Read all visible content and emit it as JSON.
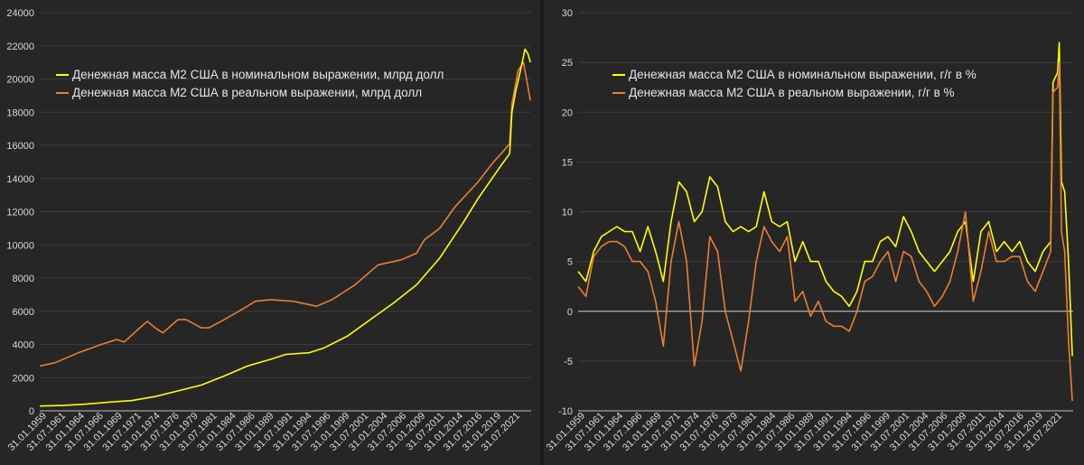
{
  "colors": {
    "background": "#262626",
    "grid": "#3c3c3c",
    "axis": "#bfbfbf",
    "nominal": "#ffff00",
    "real": "#ed7d31"
  },
  "chart_data": [
    {
      "type": "line",
      "grid": true,
      "legend_position": "top",
      "ylim": [
        0,
        24000
      ],
      "yticks": [
        0,
        2000,
        4000,
        6000,
        8000,
        10000,
        12000,
        14000,
        16000,
        18000,
        20000,
        22000,
        24000
      ],
      "xlim": [
        1959.0,
        2022.9
      ],
      "xtick_labels": [
        "31.01.1959",
        "31.07.1961",
        "31.01.1964",
        "31.07.1966",
        "31.01.1969",
        "31.07.1971",
        "31.01.1974",
        "31.07.1976",
        "31.01.1979",
        "31.07.1981",
        "31.01.1984",
        "31.07.1986",
        "31.01.1989",
        "31.07.1991",
        "31.01.1994",
        "31.07.1996",
        "31.01.1999",
        "31.07.2001",
        "31.01.2004",
        "31.07.2006",
        "31.01.2009",
        "31.07.2011",
        "31.01.2014",
        "31.07.2016",
        "31.01.2019",
        "31.07.2021"
      ],
      "series": [
        {
          "name": "Денежная масса М2 США в номинальном выражении, млрд долл",
          "color": "#ffff00",
          "points": [
            [
              1959,
              290
            ],
            [
              1962,
              320
            ],
            [
              1965,
              400
            ],
            [
              1968,
              520
            ],
            [
              1971,
              620
            ],
            [
              1974,
              860
            ],
            [
              1977,
              1200
            ],
            [
              1980,
              1550
            ],
            [
              1983,
              2100
            ],
            [
              1986,
              2700
            ],
            [
              1989,
              3100
            ],
            [
              1991,
              3400
            ],
            [
              1994,
              3500
            ],
            [
              1996,
              3800
            ],
            [
              1999,
              4500
            ],
            [
              2002,
              5500
            ],
            [
              2005,
              6500
            ],
            [
              2008,
              7600
            ],
            [
              2011,
              9200
            ],
            [
              2014,
              11300
            ],
            [
              2016,
              12800
            ],
            [
              2019,
              14800
            ],
            [
              2020.1,
              15500
            ],
            [
              2020.4,
              18000
            ],
            [
              2020.9,
              19300
            ],
            [
              2021.5,
              20500
            ],
            [
              2022.1,
              21800
            ],
            [
              2022.5,
              21500
            ],
            [
              2022.8,
              21000
            ]
          ]
        },
        {
          "name": "Денежная масса М2 США в реальном выражении, млрд долл",
          "color": "#ed7d31",
          "points": [
            [
              1959,
              2700
            ],
            [
              1961,
              2900
            ],
            [
              1964,
              3500
            ],
            [
              1967,
              4000
            ],
            [
              1969,
              4300
            ],
            [
              1970,
              4150
            ],
            [
              1972,
              5000
            ],
            [
              1973,
              5400
            ],
            [
              1974,
              5000
            ],
            [
              1975,
              4700
            ],
            [
              1977,
              5500
            ],
            [
              1978,
              5500
            ],
            [
              1980,
              5000
            ],
            [
              1981,
              5000
            ],
            [
              1983,
              5500
            ],
            [
              1986,
              6300
            ],
            [
              1987,
              6600
            ],
            [
              1989,
              6700
            ],
            [
              1992,
              6600
            ],
            [
              1995,
              6300
            ],
            [
              1997,
              6700
            ],
            [
              2000,
              7600
            ],
            [
              2003,
              8800
            ],
            [
              2006,
              9100
            ],
            [
              2008,
              9500
            ],
            [
              2009,
              10300
            ],
            [
              2011,
              11000
            ],
            [
              2013,
              12300
            ],
            [
              2016,
              13800
            ],
            [
              2018,
              15000
            ],
            [
              2019,
              15500
            ],
            [
              2020.1,
              16100
            ],
            [
              2020.4,
              18500
            ],
            [
              2021.2,
              20500
            ],
            [
              2021.9,
              21000
            ],
            [
              2022.3,
              20000
            ],
            [
              2022.8,
              18700
            ]
          ]
        }
      ]
    },
    {
      "type": "line",
      "grid": true,
      "legend_position": "top",
      "ylim": [
        -10,
        30
      ],
      "yticks": [
        -10,
        -5,
        0,
        5,
        10,
        15,
        20,
        25,
        30
      ],
      "xlim": [
        1959.0,
        2022.9
      ],
      "xtick_labels": [
        "31.01.1959",
        "31.07.1961",
        "31.01.1964",
        "31.07.1966",
        "31.01.1969",
        "31.07.1971",
        "31.01.1974",
        "31.07.1976",
        "31.01.1979",
        "31.07.1981",
        "31.01.1984",
        "31.07.1986",
        "31.01.1989",
        "31.07.1991",
        "31.01.1994",
        "31.07.1996",
        "31.01.1999",
        "31.07.2001",
        "31.01.2004",
        "31.07.2006",
        "31.01.2009",
        "31.07.2011",
        "31.01.2014",
        "31.07.2016",
        "31.01.2019",
        "31.07.2021"
      ],
      "series": [
        {
          "name": "Денежная масса М2 США в номинальном выражении, г/г в %",
          "color": "#ffff00",
          "points": [
            [
              1959,
              4
            ],
            [
              1960,
              3
            ],
            [
              1961,
              6
            ],
            [
              1962,
              7.5
            ],
            [
              1963,
              8
            ],
            [
              1964,
              8.5
            ],
            [
              1965,
              8
            ],
            [
              1966,
              8
            ],
            [
              1967,
              6
            ],
            [
              1968,
              8.5
            ],
            [
              1969,
              6
            ],
            [
              1970,
              3
            ],
            [
              1971,
              9
            ],
            [
              1972,
              13
            ],
            [
              1973,
              12
            ],
            [
              1974,
              9
            ],
            [
              1975,
              10
            ],
            [
              1976,
              13.5
            ],
            [
              1977,
              12.5
            ],
            [
              1978,
              9
            ],
            [
              1979,
              8
            ],
            [
              1980,
              8.5
            ],
            [
              1981,
              8
            ],
            [
              1982,
              8.5
            ],
            [
              1983,
              12
            ],
            [
              1984,
              9
            ],
            [
              1985,
              8.5
            ],
            [
              1986,
              9
            ],
            [
              1987,
              5
            ],
            [
              1988,
              7
            ],
            [
              1989,
              5
            ],
            [
              1990,
              5
            ],
            [
              1991,
              3
            ],
            [
              1992,
              2
            ],
            [
              1993,
              1.5
            ],
            [
              1994,
              0.5
            ],
            [
              1995,
              2
            ],
            [
              1996,
              5
            ],
            [
              1997,
              5
            ],
            [
              1998,
              7
            ],
            [
              1999,
              7.5
            ],
            [
              2000,
              6.5
            ],
            [
              2001,
              9.5
            ],
            [
              2002,
              8
            ],
            [
              2003,
              6
            ],
            [
              2004,
              5
            ],
            [
              2005,
              4
            ],
            [
              2006,
              5
            ],
            [
              2007,
              6
            ],
            [
              2008,
              8
            ],
            [
              2009,
              9
            ],
            [
              2010,
              3
            ],
            [
              2011,
              8
            ],
            [
              2012,
              9
            ],
            [
              2013,
              6
            ],
            [
              2014,
              7
            ],
            [
              2015,
              6
            ],
            [
              2016,
              7
            ],
            [
              2017,
              5
            ],
            [
              2018,
              4
            ],
            [
              2019,
              6
            ],
            [
              2020,
              7
            ],
            [
              2020.3,
              23
            ],
            [
              2020.9,
              24
            ],
            [
              2021.1,
              27
            ],
            [
              2021.4,
              13
            ],
            [
              2021.8,
              12
            ],
            [
              2022.3,
              5
            ],
            [
              2022.8,
              -4.5
            ]
          ]
        },
        {
          "name": "Денежная масса М2 США в реальном выражении, г/г в %",
          "color": "#ed7d31",
          "points": [
            [
              1959,
              2.5
            ],
            [
              1960,
              1.5
            ],
            [
              1961,
              5.5
            ],
            [
              1962,
              6.5
            ],
            [
              1963,
              7
            ],
            [
              1964,
              7
            ],
            [
              1965,
              6.5
            ],
            [
              1966,
              5
            ],
            [
              1967,
              5
            ],
            [
              1968,
              4
            ],
            [
              1969,
              1
            ],
            [
              1970,
              -3.5
            ],
            [
              1971,
              5
            ],
            [
              1972,
              9
            ],
            [
              1973,
              5
            ],
            [
              1974,
              -5.5
            ],
            [
              1975,
              -1
            ],
            [
              1976,
              7.5
            ],
            [
              1977,
              6
            ],
            [
              1978,
              0
            ],
            [
              1979,
              -3
            ],
            [
              1980,
              -6
            ],
            [
              1981,
              -1
            ],
            [
              1982,
              5
            ],
            [
              1983,
              8.5
            ],
            [
              1984,
              7
            ],
            [
              1985,
              6
            ],
            [
              1986,
              7.5
            ],
            [
              1987,
              1
            ],
            [
              1988,
              2
            ],
            [
              1989,
              -0.5
            ],
            [
              1990,
              1
            ],
            [
              1991,
              -1
            ],
            [
              1992,
              -1.5
            ],
            [
              1993,
              -1.5
            ],
            [
              1994,
              -2
            ],
            [
              1995,
              0
            ],
            [
              1996,
              3
            ],
            [
              1997,
              3.5
            ],
            [
              1998,
              5
            ],
            [
              1999,
              6
            ],
            [
              2000,
              3
            ],
            [
              2001,
              6
            ],
            [
              2002,
              5.5
            ],
            [
              2003,
              3
            ],
            [
              2004,
              2
            ],
            [
              2005,
              0.5
            ],
            [
              2006,
              1.5
            ],
            [
              2007,
              3
            ],
            [
              2008,
              6
            ],
            [
              2009,
              10
            ],
            [
              2010,
              1
            ],
            [
              2011,
              4
            ],
            [
              2012,
              8
            ],
            [
              2013,
              5
            ],
            [
              2014,
              5
            ],
            [
              2015,
              5.5
            ],
            [
              2016,
              5.5
            ],
            [
              2017,
              3
            ],
            [
              2018,
              2
            ],
            [
              2019,
              4
            ],
            [
              2020,
              6
            ],
            [
              2020.3,
              22
            ],
            [
              2020.9,
              22.5
            ],
            [
              2021.1,
              25
            ],
            [
              2021.4,
              8
            ],
            [
              2021.8,
              6
            ],
            [
              2022.3,
              -3
            ],
            [
              2022.8,
              -9
            ]
          ]
        }
      ]
    }
  ]
}
